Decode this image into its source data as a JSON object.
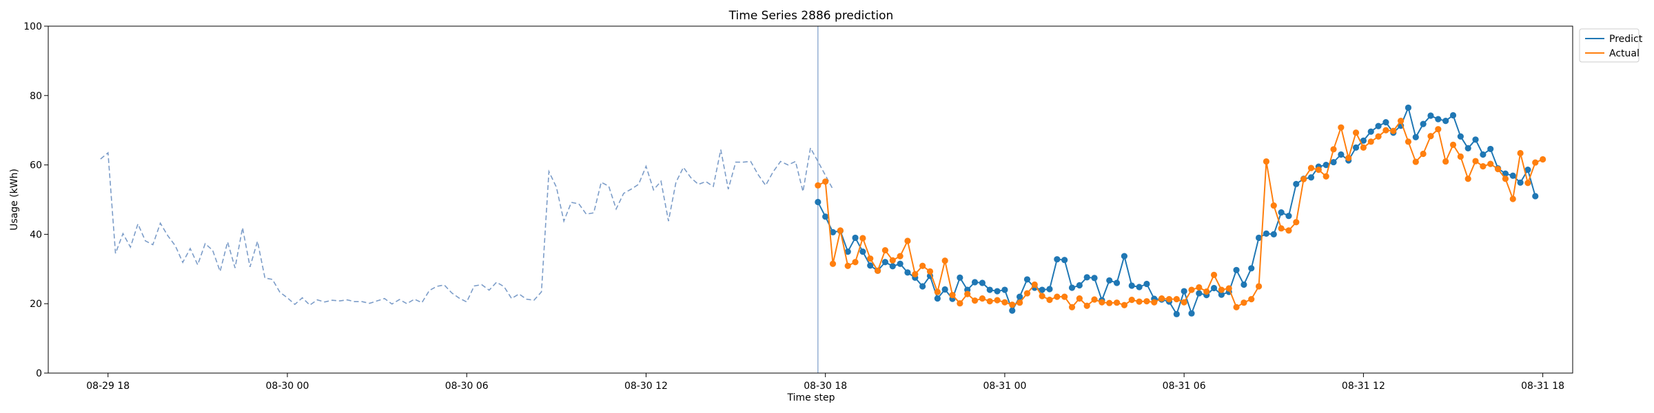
{
  "chart_data": {
    "type": "line",
    "title": "Time Series 2886 prediction",
    "xlabel": "Time step",
    "ylabel": "Usage (kWh)",
    "xlim": [
      "2023-08-29T16:00",
      "2023-08-31T19:00"
    ],
    "ylim": [
      0,
      100
    ],
    "yticks": [
      0,
      20,
      40,
      60,
      80,
      100
    ],
    "xticks": [
      "08-29 18",
      "08-30 00",
      "08-30 06",
      "08-30 12",
      "08-30 18",
      "08-31 00",
      "08-31 06",
      "08-31 12",
      "08-31 18"
    ],
    "tick_times": [
      "2023-08-29T18:00",
      "2023-08-30T00:00",
      "2023-08-30T06:00",
      "2023-08-30T12:00",
      "2023-08-30T18:00",
      "2023-08-31T00:00",
      "2023-08-31T06:00",
      "2023-08-31T12:00",
      "2023-08-31T18:00"
    ],
    "interval_minutes": 15,
    "grid": false,
    "legend": "upper right outside",
    "forecast_start": "2023-08-30T17:45",
    "history": {
      "start": "2023-08-29T17:45",
      "color": "#7b9cc8",
      "style": "dashed",
      "values": [
        61.7,
        63.5,
        34.5,
        40.2,
        36.3,
        43.0,
        38.1,
        37.0,
        43.2,
        39.6,
        36.7,
        31.9,
        35.9,
        31.2,
        37.3,
        35.4,
        29.3,
        37.8,
        30.3,
        41.9,
        30.6,
        38.0,
        27.4,
        27.0,
        23.3,
        21.7,
        19.8,
        21.7,
        19.6,
        21.1,
        20.5,
        21.0,
        20.8,
        21.1,
        20.6,
        20.6,
        20.1,
        20.8,
        21.5,
        19.9,
        21.2,
        20.0,
        21.3,
        20.3,
        23.8,
        25.0,
        25.4,
        23.1,
        21.6,
        20.5,
        25.1,
        25.5,
        23.9,
        26.2,
        24.9,
        21.5,
        22.8,
        21.3,
        21.0,
        23.4,
        58.1,
        53.6,
        43.8,
        49.2,
        48.8,
        45.8,
        46.2,
        55.0,
        53.9,
        47.3,
        51.8,
        53.0,
        54.4,
        59.6,
        52.8,
        55.3,
        43.8,
        55.0,
        59.3,
        56.3,
        54.4,
        55.2,
        53.8,
        64.4,
        53.0,
        60.8,
        60.8,
        61.0,
        57.2,
        54.1,
        58.0,
        61.0,
        60.0,
        61.0,
        52.3,
        64.9,
        61.0,
        57.0,
        53.0
      ]
    },
    "series": [
      {
        "name": "Predict",
        "color": "#1f77b4",
        "start": "2023-08-30T17:45",
        "values": [
          49.3,
          45.1,
          40.6,
          41.0,
          35.0,
          39.0,
          35.0,
          31.0,
          29.5,
          32.0,
          30.8,
          31.5,
          29.0,
          27.5,
          25.0,
          28.0,
          21.5,
          24.1,
          21.4,
          27.5,
          24.0,
          26.2,
          26.0,
          24.0,
          23.6,
          24.0,
          18.0,
          22.0,
          27.0,
          24.6,
          24.0,
          24.2,
          32.8,
          32.6,
          24.6,
          25.3,
          27.6,
          27.4,
          21.0,
          26.7,
          26.0,
          33.7,
          25.2,
          24.8,
          25.7,
          21.4,
          21.2,
          20.6,
          17.0,
          23.6,
          17.2,
          23.0,
          22.5,
          24.5,
          22.6,
          23.4,
          29.7,
          25.5,
          30.2,
          39.0,
          40.2,
          40.0,
          46.3,
          45.3,
          54.5,
          56.0,
          56.4,
          59.5,
          60.0,
          60.8,
          63.0,
          61.3,
          65.0,
          67.0,
          69.6,
          71.2,
          72.3,
          69.3,
          71.3,
          76.5,
          68.0,
          71.8,
          74.2,
          73.2,
          72.7,
          74.3,
          68.2,
          64.8,
          67.3,
          63.0,
          64.6,
          59.0,
          57.5,
          56.9,
          54.9,
          58.6,
          51.0
        ]
      },
      {
        "name": "Actual",
        "color": "#ff7f0e",
        "start": "2023-08-30T17:45",
        "values": [
          54.1,
          55.2,
          31.5,
          41.1,
          30.9,
          32.0,
          38.9,
          33.0,
          29.5,
          35.4,
          32.5,
          33.7,
          38.1,
          28.5,
          30.9,
          29.3,
          23.4,
          32.4,
          22.5,
          20.1,
          22.8,
          20.9,
          21.5,
          20.7,
          21.0,
          20.4,
          19.7,
          20.3,
          23.0,
          25.5,
          22.2,
          21.1,
          22.0,
          22.0,
          19.0,
          21.5,
          19.4,
          21.2,
          20.4,
          20.2,
          20.3,
          19.6,
          21.1,
          20.6,
          20.7,
          20.4,
          21.5,
          21.3,
          21.3,
          20.4,
          24.0,
          24.7,
          23.5,
          28.3,
          24.0,
          24.4,
          19.0,
          20.3,
          21.3,
          25.0,
          61.0,
          48.3,
          41.7,
          41.1,
          43.5,
          55.9,
          59.1,
          58.6,
          56.7,
          64.5,
          70.8,
          62.0,
          69.3,
          65.0,
          66.7,
          68.2,
          70.0,
          69.8,
          72.7,
          66.7,
          60.9,
          63.2,
          68.3,
          70.3,
          61.0,
          65.8,
          62.4,
          56.0,
          61.1,
          59.6,
          60.3,
          58.8,
          56.0,
          50.2,
          63.4,
          54.8,
          60.7,
          61.6
        ]
      }
    ]
  }
}
